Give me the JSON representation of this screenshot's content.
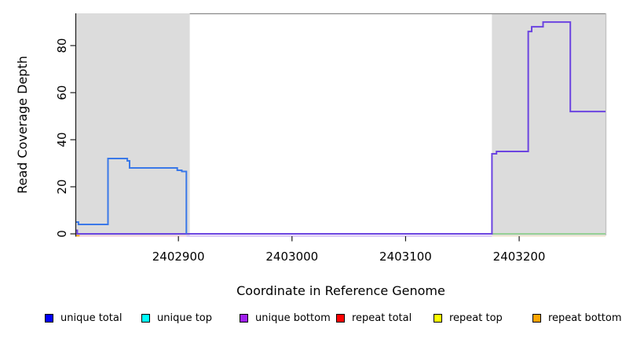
{
  "chart_data": {
    "type": "line",
    "title": "",
    "xlabel": "Coordinate in Reference Genome",
    "ylabel": "Read Coverage Depth",
    "x_range": [
      2402810,
      2403276
    ],
    "y_range": [
      0,
      93.7
    ],
    "x_ticks": [
      2402900,
      2403000,
      2403100,
      2403200
    ],
    "y_ticks": [
      0,
      20,
      40,
      60,
      80
    ],
    "grid": false,
    "shade_color": "#DCDCDC",
    "shaded_regions": [
      {
        "name": "left-repeat-region",
        "start": 2402810,
        "end": 2402910
      },
      {
        "name": "right-repeat-region",
        "start": 2403176,
        "end": 2403276
      }
    ],
    "series": [
      {
        "name": "unique bottom",
        "color": "#6B44E0",
        "width": 2,
        "points": [
          [
            2402810,
            1.5
          ],
          [
            2402811,
            1.5
          ],
          [
            2402811,
            0
          ],
          [
            2403176,
            0
          ],
          [
            2403176,
            34
          ],
          [
            2403180,
            34
          ],
          [
            2403180,
            35
          ],
          [
            2403208,
            35
          ],
          [
            2403208,
            86
          ],
          [
            2403211,
            86
          ],
          [
            2403211,
            88
          ],
          [
            2403221,
            88
          ],
          [
            2403221,
            90
          ],
          [
            2403245,
            90
          ],
          [
            2403245,
            52
          ],
          [
            2403276,
            52
          ]
        ]
      },
      {
        "name": "unique total",
        "color": "#3A78E8",
        "width": 2,
        "points": [
          [
            2402810,
            5
          ],
          [
            2402812,
            5
          ],
          [
            2402812,
            4
          ],
          [
            2402838,
            4
          ],
          [
            2402838,
            32
          ],
          [
            2402855,
            32
          ],
          [
            2402855,
            31
          ],
          [
            2402857,
            31
          ],
          [
            2402857,
            28
          ],
          [
            2402899,
            28
          ],
          [
            2402899,
            27
          ],
          [
            2402903,
            27
          ],
          [
            2402903,
            26.5
          ],
          [
            2402907,
            26.5
          ],
          [
            2402907,
            0
          ]
        ]
      }
    ],
    "baseline_segments": [
      {
        "name": "repeat-total-baseline",
        "color": "#E8486E",
        "start": 2402810,
        "end": 2402907,
        "dy": 0
      },
      {
        "name": "right-baseline-green",
        "color": "#8CCE8C",
        "start": 2403176,
        "end": 2403276,
        "dy": 0
      },
      {
        "name": "repeat-bottom-corner",
        "color": "#FFA500",
        "start": 2402810,
        "end": 2402813,
        "dy": 2.4
      }
    ],
    "baseline_shadows": [
      {
        "color": "#F2C6D6",
        "start": 2402810,
        "end": 2402907
      },
      {
        "color": "#CBB0F0",
        "start": 2402907,
        "end": 2403176
      },
      {
        "color": "#EDE2C6",
        "start": 2403176,
        "end": 2403276
      }
    ],
    "legend_position": "bottom"
  },
  "legend": {
    "items": [
      {
        "label": "unique total",
        "color": "#0000FF"
      },
      {
        "label": "unique top",
        "color": "#00FFFF"
      },
      {
        "label": "unique bottom",
        "color": "#A020F0"
      },
      {
        "label": "repeat total",
        "color": "#FF0000"
      },
      {
        "label": "repeat top",
        "color": "#FFFF00"
      },
      {
        "label": "repeat bottom",
        "color": "#FFA500"
      }
    ]
  }
}
